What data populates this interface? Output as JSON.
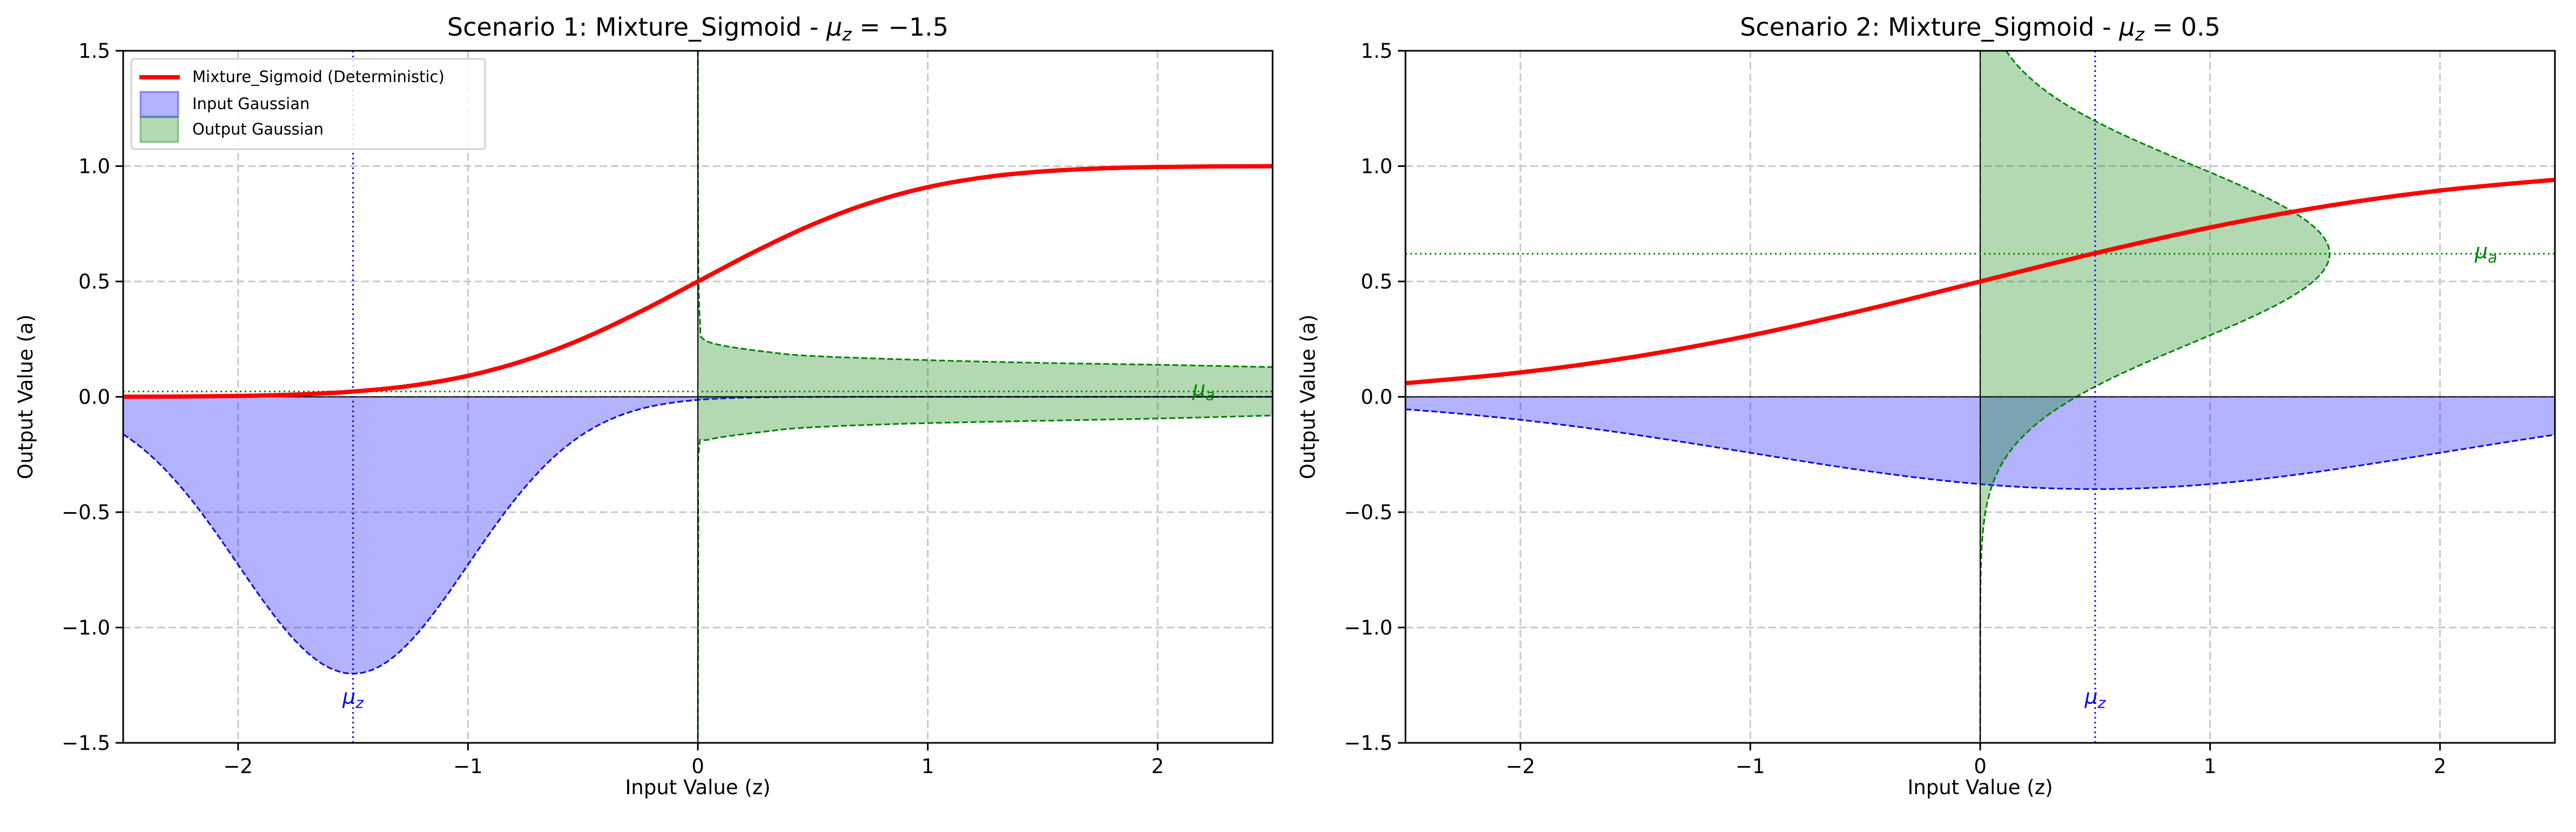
{
  "colors": {
    "sigmoid": "#ff0000",
    "input": "#0000ff",
    "output": "#008000",
    "grid": "#c8c8c8"
  },
  "legend": {
    "placement": "top-left",
    "items": [
      "Mixture_Sigmoid (Deterministic)",
      "Input Gaussian",
      "Output Gaussian"
    ]
  },
  "chart_data": [
    {
      "type": "line",
      "title_prefix": "Scenario 1: Mixture_Sigmoid - ",
      "title_var": "μ",
      "title_sub": "z",
      "title_suffix": " = −1.5",
      "xlabel": "Input Value (z)",
      "ylabel": "Output Value (a)",
      "xlim": [
        -2.5,
        2.5
      ],
      "ylim": [
        -1.5,
        1.5
      ],
      "grid": true,
      "xticks": [
        -2,
        -1,
        0,
        1,
        2
      ],
      "xtick_labels": [
        "−2",
        "−1",
        "0",
        "1",
        "2"
      ],
      "yticks": [
        -1.5,
        -1.0,
        -0.5,
        0.0,
        0.5,
        1.0,
        1.5
      ],
      "ytick_labels": [
        "−1.5",
        "−1.0",
        "−0.5",
        "0.0",
        "0.5",
        "1.0",
        "1.5"
      ],
      "mu_z": -1.5,
      "mu_a": 0.023,
      "mu_z_label": "μ",
      "mu_z_sub": "z",
      "mu_a_label": "μ",
      "mu_a_sub": "a",
      "sigmoid": {
        "name": "Mixture_Sigmoid (Deterministic)",
        "z": [
          -2.5,
          -2.25,
          -2,
          -1.75,
          -1.5,
          -1.25,
          -1,
          -0.75,
          -0.5,
          -0.25,
          0,
          0.25,
          0.5,
          0.75,
          1,
          1.25,
          1.5,
          1.75,
          2,
          2.25,
          2.5
        ],
        "a": [
          0.0004,
          0.0013,
          0.0038,
          0.0098,
          0.0228,
          0.0478,
          0.0912,
          0.1587,
          0.2525,
          0.3694,
          0.5,
          0.6306,
          0.7475,
          0.8413,
          0.9088,
          0.9522,
          0.9772,
          0.9902,
          0.9962,
          0.9987,
          0.9996
        ]
      },
      "input_gaussian": {
        "name": "Input Gaussian",
        "mean": -1.5,
        "std": 0.5,
        "peak_height": 1.2
      },
      "output_gaussian": {
        "name": "Output Gaussian",
        "points_a_z": [
          [
            1.5,
            0.0
          ],
          [
            0.6,
            0.002
          ],
          [
            0.31,
            0.01
          ],
          [
            0.254,
            0.02
          ],
          [
            0.224,
            0.1
          ],
          [
            0.195,
            0.3
          ],
          [
            0.177,
            0.5
          ],
          [
            0.159,
            1.0
          ],
          [
            0.147,
            1.5
          ],
          [
            0.139,
            2.0
          ],
          [
            0.129,
            2.5
          ],
          [
            0.12,
            3.0
          ],
          [
            -0.07,
            3.0
          ],
          [
            -0.081,
            2.5
          ],
          [
            -0.094,
            2.0
          ],
          [
            -0.114,
            1.0
          ],
          [
            -0.132,
            0.5
          ],
          [
            -0.15,
            0.3
          ],
          [
            -0.185,
            0.05
          ],
          [
            -0.227,
            0.005
          ],
          [
            -0.6,
            0.002
          ],
          [
            -1.5,
            0.0
          ]
        ]
      },
      "show_legend": true
    },
    {
      "type": "line",
      "title_prefix": "Scenario 2: Mixture_Sigmoid - ",
      "title_var": "μ",
      "title_sub": "z",
      "title_suffix": " = 0.5",
      "xlabel": "Input Value (z)",
      "ylabel": "Output Value (a)",
      "xlim": [
        -2.5,
        2.5
      ],
      "ylim": [
        -1.5,
        1.5
      ],
      "grid": true,
      "xticks": [
        -2,
        -1,
        0,
        1,
        2
      ],
      "xtick_labels": [
        "−2",
        "−1",
        "0",
        "1",
        "2"
      ],
      "yticks": [
        -1.5,
        -1.0,
        -0.5,
        0.0,
        0.5,
        1.0,
        1.5
      ],
      "ytick_labels": [
        "−1.5",
        "−1.0",
        "−0.5",
        "0.0",
        "0.5",
        "1.0",
        "1.5"
      ],
      "mu_z": 0.5,
      "mu_a": 0.62,
      "mu_z_label": "μ",
      "mu_z_sub": "z",
      "mu_a_label": "μ",
      "mu_a_sub": "a",
      "sigmoid": {
        "name": "Mixture_Sigmoid (Deterministic)",
        "z": [
          -2.5,
          -2,
          -1.5,
          -1,
          -0.5,
          0,
          0.5,
          1,
          1.5,
          2,
          2.5
        ],
        "a": [
          0.0591,
          0.1056,
          0.1743,
          0.266,
          0.3773,
          0.5,
          0.6227,
          0.734,
          0.8257,
          0.8944,
          0.9409
        ]
      },
      "input_gaussian": {
        "name": "Input Gaussian",
        "mean": 0.5,
        "std": 1.5,
        "peak_height": 0.4
      },
      "output_gaussian": {
        "name": "Output Gaussian",
        "mean": 0.62,
        "std": 0.386,
        "peak_width": 1.52
      },
      "show_legend": false
    }
  ]
}
